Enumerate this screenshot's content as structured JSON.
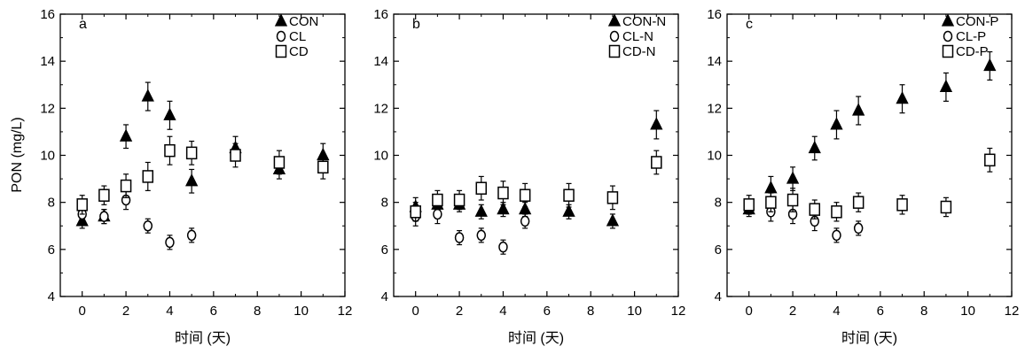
{
  "figure": {
    "ylabel": "PON (mg/L)"
  },
  "styles": {
    "marker_color": "#000000",
    "background": "#ffffff"
  },
  "chart_data": [
    {
      "type": "scatter",
      "panel_label": "a",
      "xlabel": "时间 (天)",
      "ylabel": "PON (mg/L)",
      "xlim": [
        -1,
        12
      ],
      "ylim": [
        4,
        16
      ],
      "xticks": [
        0,
        2,
        4,
        6,
        8,
        10,
        12
      ],
      "yticks": [
        4,
        6,
        8,
        10,
        12,
        14,
        16
      ],
      "legend_position": "top-right",
      "grid": false,
      "series": [
        {
          "name": "CON",
          "marker": "triangle-filled",
          "x": [
            0,
            1,
            2,
            3,
            4,
            5,
            7,
            9,
            11
          ],
          "y": [
            7.2,
            7.4,
            10.8,
            12.5,
            11.7,
            8.9,
            10.3,
            9.4,
            10.0
          ],
          "err": [
            0.3,
            0.3,
            0.5,
            0.6,
            0.6,
            0.5,
            0.5,
            0.4,
            0.5
          ]
        },
        {
          "name": "CL",
          "marker": "circle-open",
          "x": [
            0,
            1,
            2,
            3,
            4,
            5
          ],
          "y": [
            7.5,
            7.4,
            8.1,
            7.0,
            6.3,
            6.6
          ],
          "err": [
            0.3,
            0.3,
            0.4,
            0.3,
            0.3,
            0.3
          ]
        },
        {
          "name": "CD",
          "marker": "square-open",
          "x": [
            0,
            1,
            2,
            3,
            4,
            5,
            7,
            9,
            11
          ],
          "y": [
            7.9,
            8.3,
            8.7,
            9.1,
            10.2,
            10.1,
            10.0,
            9.7,
            9.5
          ],
          "err": [
            0.4,
            0.4,
            0.5,
            0.6,
            0.6,
            0.5,
            0.5,
            0.5,
            0.5
          ]
        }
      ]
    },
    {
      "type": "scatter",
      "panel_label": "b",
      "xlabel": "时间 (天)",
      "ylabel": "",
      "xlim": [
        -1,
        12
      ],
      "ylim": [
        4,
        16
      ],
      "xticks": [
        0,
        2,
        4,
        6,
        8,
        10,
        12
      ],
      "yticks": [
        4,
        6,
        8,
        10,
        12,
        14,
        16
      ],
      "legend_position": "top-right",
      "grid": false,
      "series": [
        {
          "name": "CON-N",
          "marker": "triangle-filled",
          "x": [
            0,
            1,
            2,
            3,
            4,
            5,
            7,
            9,
            11
          ],
          "y": [
            7.8,
            7.9,
            7.9,
            7.6,
            7.7,
            7.7,
            7.6,
            7.2,
            11.3
          ],
          "err": [
            0.4,
            0.3,
            0.3,
            0.3,
            0.3,
            0.3,
            0.3,
            0.3,
            0.6
          ]
        },
        {
          "name": "CL-N",
          "marker": "circle-open",
          "x": [
            0,
            1,
            2,
            3,
            4,
            5
          ],
          "y": [
            7.4,
            7.5,
            6.5,
            6.6,
            6.1,
            7.2
          ],
          "err": [
            0.4,
            0.4,
            0.3,
            0.3,
            0.3,
            0.3
          ]
        },
        {
          "name": "CD-N",
          "marker": "square-open",
          "x": [
            0,
            1,
            2,
            3,
            4,
            5,
            7,
            9,
            11
          ],
          "y": [
            7.6,
            8.1,
            8.1,
            8.6,
            8.4,
            8.3,
            8.3,
            8.2,
            9.7
          ],
          "err": [
            0.4,
            0.4,
            0.4,
            0.5,
            0.5,
            0.5,
            0.5,
            0.5,
            0.5
          ]
        }
      ]
    },
    {
      "type": "scatter",
      "panel_label": "c",
      "xlabel": "时间 (天)",
      "ylabel": "",
      "xlim": [
        -1,
        12
      ],
      "ylim": [
        4,
        16
      ],
      "xticks": [
        0,
        2,
        4,
        6,
        8,
        10,
        12
      ],
      "yticks": [
        4,
        6,
        8,
        10,
        12,
        14,
        16
      ],
      "legend_position": "top-right",
      "grid": false,
      "series": [
        {
          "name": "CON-P",
          "marker": "triangle-filled",
          "x": [
            0,
            1,
            2,
            3,
            4,
            5,
            7,
            9,
            11
          ],
          "y": [
            7.7,
            8.6,
            9.0,
            10.3,
            11.3,
            11.9,
            12.4,
            12.9,
            13.8
          ],
          "err": [
            0.3,
            0.5,
            0.5,
            0.5,
            0.6,
            0.6,
            0.6,
            0.6,
            0.6
          ]
        },
        {
          "name": "CL-P",
          "marker": "circle-open",
          "x": [
            0,
            1,
            2,
            3,
            4,
            5
          ],
          "y": [
            7.8,
            7.6,
            7.5,
            7.2,
            6.6,
            6.9
          ],
          "err": [
            0.3,
            0.4,
            0.4,
            0.4,
            0.3,
            0.3
          ]
        },
        {
          "name": "CD-P",
          "marker": "square-open",
          "x": [
            0,
            1,
            2,
            3,
            4,
            5,
            7,
            9,
            11
          ],
          "y": [
            7.9,
            8.0,
            8.1,
            7.7,
            7.6,
            8.0,
            7.9,
            7.8,
            9.8
          ],
          "err": [
            0.4,
            0.4,
            0.5,
            0.4,
            0.4,
            0.4,
            0.4,
            0.4,
            0.5
          ]
        }
      ]
    }
  ]
}
